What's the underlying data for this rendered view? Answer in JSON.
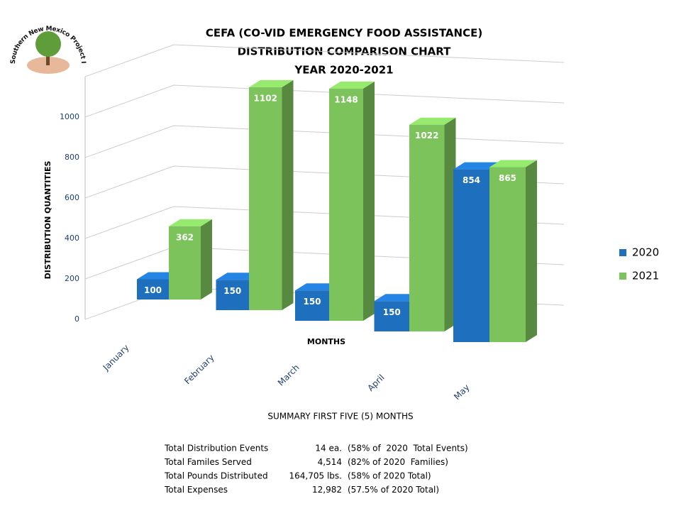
{
  "logo_text": "Southern New Mexico Project Inc.",
  "chart_data": {
    "type": "bar",
    "title": [
      "CEFA (CO-VID EMERGENCY FOOD ASSISTANCE)",
      "DISTRIBUTION COMPARISON CHART",
      "YEAR 2020-2021"
    ],
    "y_label": "DISTRIBUTION QUANTITIES",
    "x_label": "MONTHS",
    "categories": [
      "January",
      "February",
      "March",
      "April",
      "May"
    ],
    "series": [
      {
        "name": "2020",
        "color": "#1f6fbf",
        "values": [
          100,
          150,
          150,
          150,
          854
        ]
      },
      {
        "name": "2021",
        "color": "#7dc35b",
        "values": [
          362,
          1102,
          1148,
          1022,
          865
        ]
      }
    ],
    "ylim": [
      0,
      1200
    ],
    "yticks": [
      0,
      200,
      400,
      600,
      800,
      1000
    ],
    "grid": true,
    "legend": "right"
  },
  "summary": {
    "title": "SUMMARY FIRST FIVE (5) MONTHS",
    "rows": [
      [
        "Total Distribution Events",
        "14 ea.",
        "(58% of  2020  Total Events)"
      ],
      [
        "Total Familes Served",
        "4,514",
        "(82% of 2020  Families)"
      ],
      [
        "Total Pounds Distributed",
        "164,705 lbs.",
        "(58% of 2020 Total)"
      ],
      [
        "Total Expenses",
        "12,982",
        "(57.5% of 2020 Total)"
      ]
    ]
  }
}
